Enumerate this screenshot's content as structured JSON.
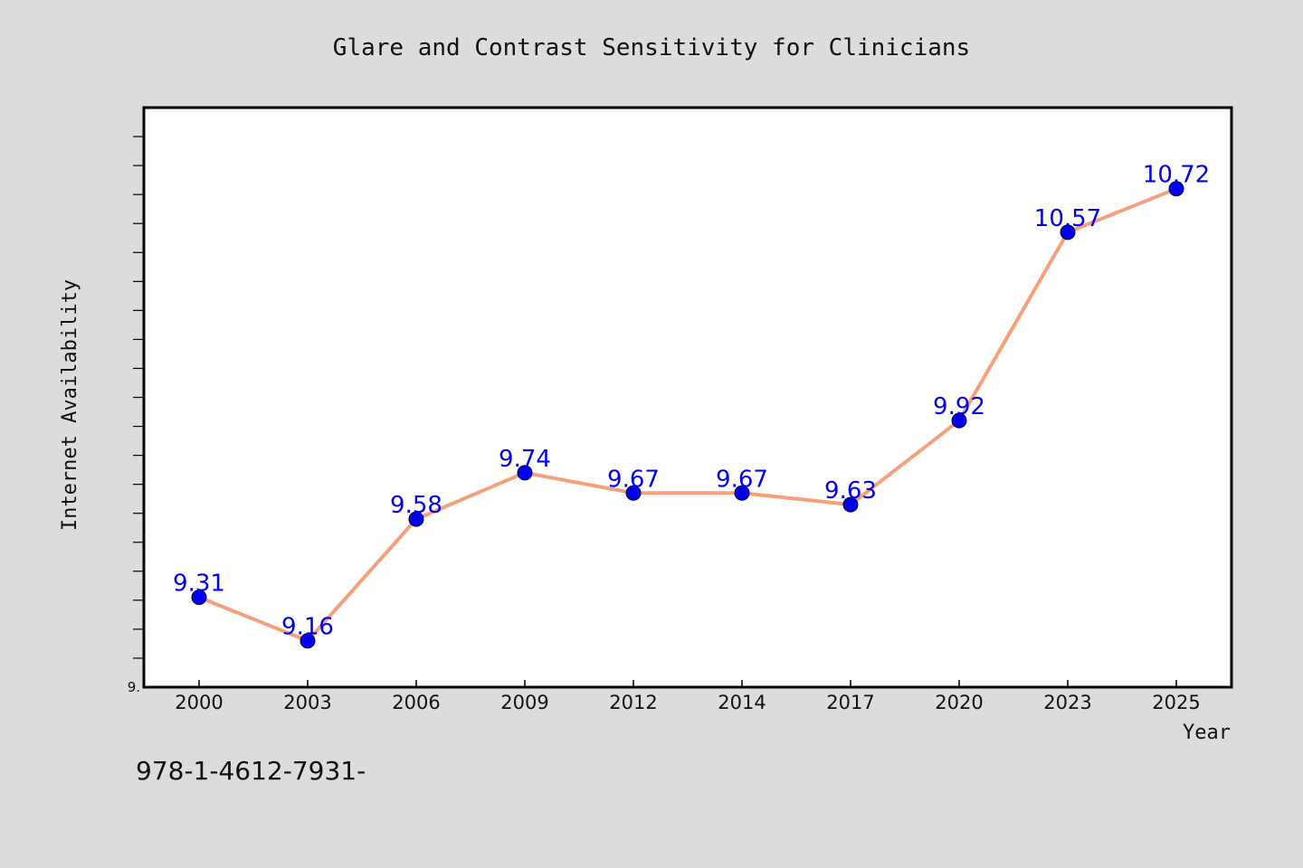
{
  "footer": {
    "code": "978-1-4612-7931-"
  },
  "chart_data": {
    "type": "line",
    "title": "Glare and Contrast Sensitivity for Clinicians",
    "xlabel": "Year",
    "ylabel": "Internet Availability",
    "categories": [
      "2000",
      "2003",
      "2006",
      "2009",
      "2012",
      "2014",
      "2017",
      "2020",
      "2023",
      "2025"
    ],
    "series": [
      {
        "values": [
          9.31,
          9.16,
          9.58,
          9.74,
          9.67,
          9.67,
          9.63,
          9.92,
          10.57,
          10.72
        ],
        "labels": [
          "9.31",
          "9.16",
          "9.58",
          "9.74",
          "9.67",
          "9.67",
          "9.63",
          "9.92",
          "10.57",
          "10.72"
        ]
      }
    ],
    "ylim": [
      9.0,
      11.0
    ],
    "y_tick_labels": [
      {
        "value": 9.0,
        "label": "9."
      }
    ],
    "y_minor_tick_step": 0.1,
    "grid": false,
    "line_color": "#f4a07a",
    "marker_color": "#0000ee",
    "label_color": "#0000ee"
  }
}
